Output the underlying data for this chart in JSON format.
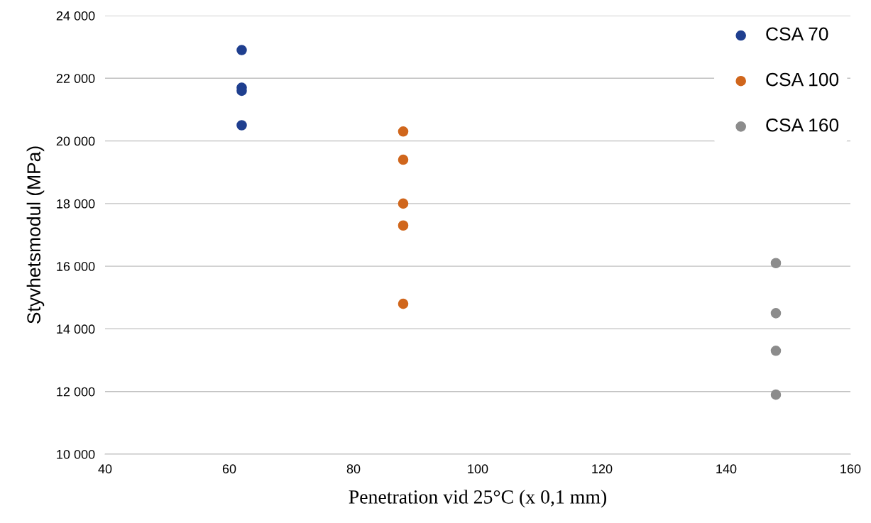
{
  "chart_data": {
    "type": "scatter",
    "xlabel": "Penetration vid 25°C (x 0,1 mm)",
    "ylabel": "Styvhetsmodul (MPa)",
    "series": [
      {
        "name": "CSA 70",
        "color": "#1f3f8f",
        "x": [
          62,
          62,
          62,
          62
        ],
        "values": [
          22900,
          21700,
          21600,
          20500
        ]
      },
      {
        "name": "CSA 100",
        "color": "#d0661c",
        "x": [
          88,
          88,
          88,
          88,
          88
        ],
        "values": [
          20300,
          19400,
          18000,
          17300,
          14800
        ]
      },
      {
        "name": "CSA 160",
        "color": "#8c8c8c",
        "x": [
          148,
          148,
          148,
          148
        ],
        "values": [
          16100,
          14500,
          13300,
          11900
        ]
      }
    ],
    "xlim": [
      40,
      160
    ],
    "xticks": [
      40,
      60,
      80,
      100,
      120,
      140,
      160
    ],
    "ylim": [
      10000,
      24000
    ],
    "yticks": [
      {
        "value": 10000,
        "label": "10 000"
      },
      {
        "value": 12000,
        "label": "12 000"
      },
      {
        "value": 14000,
        "label": "14 000"
      },
      {
        "value": 16000,
        "label": "16 000"
      },
      {
        "value": 18000,
        "label": "18 000"
      },
      {
        "value": 20000,
        "label": "20 000"
      },
      {
        "value": 22000,
        "label": "22 000"
      },
      {
        "value": 24000,
        "label": "24 000"
      }
    ],
    "grid": "y",
    "legend": "top right",
    "marker": "circle"
  }
}
